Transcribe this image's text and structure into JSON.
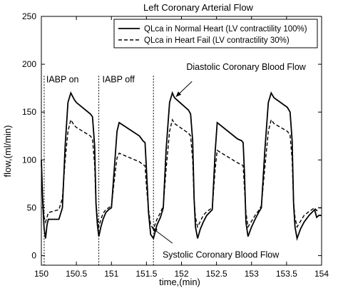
{
  "chart_data": {
    "type": "line",
    "title": "Left Coronary Arterial Flow",
    "xlabel": "time,(min)",
    "ylabel": "flow,(ml/min)",
    "xlim": [
      150,
      154
    ],
    "ylim": [
      -10,
      250
    ],
    "x_ticks": [
      150,
      150.5,
      151,
      151.5,
      152,
      152.5,
      153,
      153.5,
      154
    ],
    "x_tick_labels": [
      "150",
      "150.5",
      "151",
      "151.5",
      "152",
      "152.5",
      "153",
      "153.5",
      "154"
    ],
    "y_ticks": [
      0,
      50,
      100,
      150,
      200,
      250
    ],
    "y_tick_labels": [
      "0",
      "50",
      "100",
      "150",
      "200",
      "250"
    ],
    "grid": false,
    "legend_position": "top-right",
    "series": [
      {
        "name": "QLca in Normal Heart (LV contractility 100%)",
        "style": "solid",
        "color": "#000000",
        "x": [
          150,
          150.02,
          150.04,
          150.06,
          150.08,
          150.1,
          150.25,
          150.3,
          150.34,
          150.38,
          150.42,
          150.47,
          150.5,
          150.7,
          150.73,
          150.76,
          150.78,
          150.8,
          150.82,
          150.85,
          150.88,
          150.92,
          150.96,
          151.0,
          151.05,
          151.08,
          151.11,
          151.4,
          151.45,
          151.48,
          151.5,
          151.53,
          151.56,
          151.6,
          151.65,
          151.7,
          151.74,
          151.78,
          151.83,
          151.87,
          151.9,
          152.1,
          152.13,
          152.16,
          152.18,
          152.2,
          152.23,
          152.27,
          152.31,
          152.36,
          152.44,
          152.48,
          152.51,
          152.8,
          152.86,
          152.88,
          152.9,
          152.92,
          152.95,
          153.0,
          153.05,
          153.1,
          153.14,
          153.19,
          153.24,
          153.28,
          153.32,
          153.51,
          153.55,
          153.58,
          153.6,
          153.62,
          153.65,
          153.7,
          153.75,
          153.82,
          153.9,
          153.93,
          153.96,
          154.0
        ],
        "values": [
          100,
          55,
          28,
          18,
          32,
          38,
          38,
          50,
          115,
          160,
          170,
          163,
          160,
          148,
          145,
          115,
          55,
          32,
          20,
          30,
          38,
          45,
          48,
          50,
          100,
          130,
          139,
          125,
          120,
          118,
          90,
          45,
          22,
          18,
          32,
          40,
          50,
          110,
          160,
          170,
          165,
          152,
          148,
          120,
          60,
          30,
          18,
          28,
          35,
          42,
          48,
          108,
          139,
          122,
          120,
          118,
          85,
          35,
          20,
          30,
          38,
          45,
          50,
          110,
          160,
          170,
          165,
          155,
          150,
          120,
          55,
          30,
          18,
          28,
          35,
          42,
          48,
          40,
          42,
          42
        ]
      },
      {
        "name": "QLca in Heart Fail (LV contractility 30%)",
        "style": "dashed",
        "color": "#000000",
        "x": [
          150,
          150.02,
          150.04,
          150.06,
          150.08,
          150.1,
          150.25,
          150.3,
          150.34,
          150.38,
          150.42,
          150.47,
          150.5,
          150.7,
          150.73,
          150.76,
          150.78,
          150.8,
          150.82,
          150.85,
          150.88,
          150.92,
          150.96,
          151.0,
          151.05,
          151.08,
          151.11,
          151.4,
          151.45,
          151.48,
          151.5,
          151.53,
          151.56,
          151.6,
          151.65,
          151.7,
          151.74,
          151.78,
          151.83,
          151.87,
          151.9,
          152.1,
          152.13,
          152.16,
          152.18,
          152.2,
          152.23,
          152.27,
          152.31,
          152.36,
          152.44,
          152.48,
          152.51,
          152.8,
          152.86,
          152.88,
          152.9,
          152.92,
          152.95,
          153.0,
          153.05,
          153.1,
          153.14,
          153.19,
          153.24,
          153.28,
          153.32,
          153.51,
          153.55,
          153.58,
          153.6,
          153.62,
          153.65,
          153.7,
          153.75,
          153.82,
          153.9,
          153.93,
          153.96,
          154.0
        ],
        "values": [
          95,
          60,
          40,
          35,
          40,
          45,
          48,
          60,
          100,
          130,
          142,
          136,
          134,
          125,
          122,
          95,
          55,
          40,
          30,
          38,
          44,
          48,
          50,
          52,
          85,
          102,
          107,
          98,
          95,
          94,
          72,
          48,
          32,
          28,
          38,
          45,
          52,
          90,
          130,
          142,
          138,
          128,
          125,
          100,
          58,
          40,
          30,
          36,
          42,
          46,
          50,
          90,
          110,
          97,
          95,
          94,
          70,
          45,
          30,
          36,
          42,
          47,
          52,
          92,
          130,
          142,
          138,
          130,
          126,
          100,
          55,
          40,
          30,
          36,
          42,
          46,
          50,
          47,
          50,
          50
        ]
      }
    ],
    "vlines": [
      150.04,
      150.82,
      151.6
    ],
    "annotations": [
      {
        "text": "IABP on",
        "x": 150.07,
        "y": 181
      },
      {
        "text": "IABP off",
        "x": 150.87,
        "y": 181
      },
      {
        "text": "Diastolic Coronary Blood Flow",
        "x": 152.07,
        "y": 194
      },
      {
        "text": "Systolic Coronary Blood Flow",
        "x": 151.73,
        "y": -2
      }
    ],
    "arrows": [
      {
        "from": [
          152.15,
          182
        ],
        "to": [
          151.92,
          166
        ]
      },
      {
        "from": [
          151.87,
          13
        ],
        "to": [
          151.58,
          29
        ]
      }
    ]
  }
}
